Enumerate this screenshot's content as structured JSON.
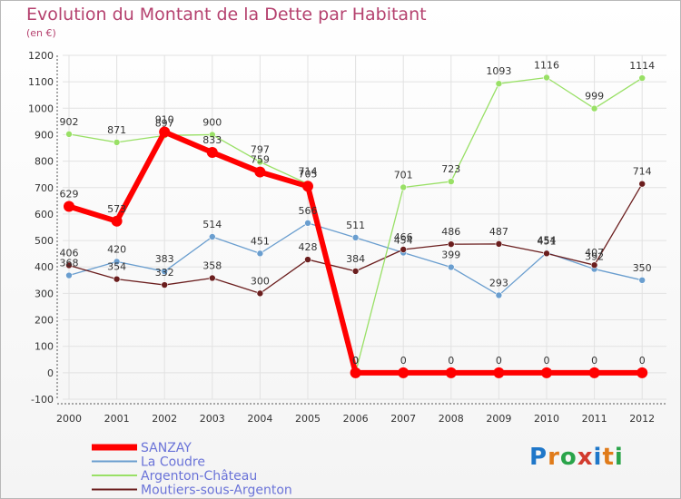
{
  "title": "Evolution du Montant de la Dette par Habitant",
  "subtitle": "(en €)",
  "logo_text": "Proxiti",
  "chart_data": {
    "type": "line",
    "title": "Evolution du Montant de la Dette par Habitant",
    "subtitle": "(en €)",
    "xlabel": "",
    "ylabel": "",
    "x": [
      "2000",
      "2001",
      "2002",
      "2003",
      "2004",
      "2005",
      "2006",
      "2007",
      "2008",
      "2009",
      "2010",
      "2011",
      "2012"
    ],
    "ylim": [
      -100,
      1200
    ],
    "yticks": [
      -100,
      0,
      100,
      200,
      300,
      400,
      500,
      600,
      700,
      800,
      900,
      1000,
      1100,
      1200
    ],
    "grid": true,
    "legend_position": "bottom-left",
    "series": [
      {
        "name": "SANZAY",
        "color": "#ff0000",
        "values": [
          629,
          573,
          910,
          833,
          759,
          705,
          0,
          0,
          0,
          0,
          0,
          0,
          0
        ]
      },
      {
        "name": "La Coudre",
        "color": "#6a9ecf",
        "values": [
          368,
          420,
          383,
          514,
          451,
          566,
          511,
          454,
          399,
          293,
          454,
          392,
          350
        ]
      },
      {
        "name": "Argenton-Château",
        "color": "#99e066",
        "values": [
          902,
          871,
          897,
          900,
          797,
          714,
          0,
          701,
          723,
          1093,
          1116,
          999,
          1114
        ]
      },
      {
        "name": "Moutiers-sous-Argenton",
        "color": "#6b1e1e",
        "values": [
          406,
          354,
          332,
          358,
          300,
          428,
          384,
          466,
          486,
          487,
          451,
          407,
          714
        ]
      }
    ]
  }
}
